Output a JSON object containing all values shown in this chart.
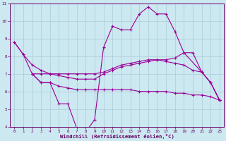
{
  "xlabel": "Windchill (Refroidissement éolien,°C)",
  "background_color": "#cce8f0",
  "line_color": "#990099",
  "xlim": [
    -0.5,
    23.5
  ],
  "ylim": [
    4,
    11
  ],
  "yticks": [
    4,
    5,
    6,
    7,
    8,
    9,
    10,
    11
  ],
  "xticks": [
    0,
    1,
    2,
    3,
    4,
    5,
    6,
    7,
    8,
    9,
    10,
    11,
    12,
    13,
    14,
    15,
    16,
    17,
    18,
    19,
    20,
    21,
    22,
    23
  ],
  "series": [
    {
      "x": [
        0,
        1,
        2,
        3,
        4,
        5,
        6,
        7,
        8,
        9,
        10,
        11,
        12,
        13,
        14,
        15,
        16,
        17,
        18,
        19,
        21,
        22,
        23
      ],
      "y": [
        8.8,
        8.1,
        7.0,
        6.5,
        6.5,
        5.3,
        5.3,
        3.9,
        3.7,
        4.4,
        8.5,
        9.7,
        9.5,
        9.5,
        10.4,
        10.8,
        10.4,
        10.4,
        9.4,
        8.2,
        7.1,
        6.5,
        5.5
      ]
    },
    {
      "x": [
        0,
        1,
        2,
        3,
        4,
        5,
        6,
        7,
        8,
        9,
        10,
        11,
        12,
        13,
        14,
        15,
        16,
        17,
        18,
        19,
        20,
        21,
        22,
        23
      ],
      "y": [
        8.8,
        8.1,
        7.5,
        7.2,
        7.0,
        6.9,
        6.8,
        6.7,
        6.7,
        6.7,
        7.0,
        7.2,
        7.4,
        7.5,
        7.6,
        7.7,
        7.8,
        7.8,
        7.9,
        8.2,
        8.2,
        7.1,
        6.5,
        5.5
      ]
    },
    {
      "x": [
        2,
        3,
        4,
        5,
        6,
        7,
        8,
        9,
        10,
        11,
        12,
        13,
        14,
        15,
        16,
        17,
        18,
        19,
        20,
        21,
        22,
        23
      ],
      "y": [
        7.0,
        7.0,
        7.0,
        7.0,
        7.0,
        7.0,
        7.0,
        7.0,
        7.1,
        7.3,
        7.5,
        7.6,
        7.7,
        7.8,
        7.8,
        7.7,
        7.6,
        7.5,
        7.2,
        7.1,
        6.5,
        5.5
      ]
    },
    {
      "x": [
        2,
        3,
        4,
        5,
        6,
        7,
        8,
        9,
        10,
        11,
        12,
        13,
        14,
        15,
        16,
        17,
        18,
        19,
        20,
        21,
        22,
        23
      ],
      "y": [
        7.0,
        6.5,
        6.5,
        6.3,
        6.2,
        6.1,
        6.1,
        6.1,
        6.1,
        6.1,
        6.1,
        6.1,
        6.0,
        6.0,
        6.0,
        6.0,
        5.9,
        5.9,
        5.8,
        5.8,
        5.7,
        5.5
      ]
    }
  ]
}
